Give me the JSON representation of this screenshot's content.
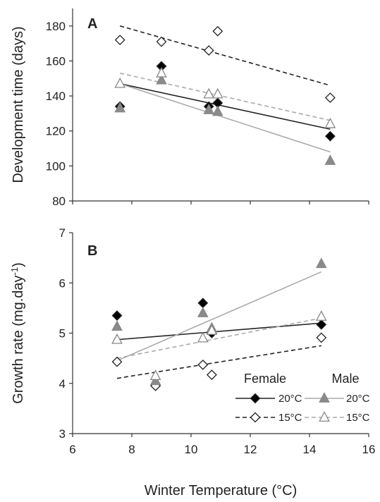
{
  "chart_data": [
    {
      "panel": "A",
      "type": "scatter",
      "ylabel": "Development time (days)",
      "xlim": [
        6,
        16
      ],
      "ylim": [
        80,
        190
      ],
      "yticks": [
        80,
        100,
        120,
        140,
        160,
        180
      ],
      "series": [
        {
          "sex": "Female",
          "temp": "20°C",
          "marker": "diamond",
          "fill": "#000000",
          "line": "solid",
          "line_color": "#222222",
          "points": [
            [
              7.6,
              134
            ],
            [
              9.0,
              157
            ],
            [
              10.6,
              134
            ],
            [
              10.9,
              136
            ],
            [
              14.7,
              117
            ]
          ],
          "fit": [
            [
              7.6,
              147
            ],
            [
              14.7,
              121
            ]
          ]
        },
        {
          "sex": "Female",
          "temp": "15°C",
          "marker": "diamond",
          "fill": "#ffffff",
          "line": "dashed",
          "line_color": "#222222",
          "points": [
            [
              7.6,
              172
            ],
            [
              9.0,
              171
            ],
            [
              10.6,
              166
            ],
            [
              10.9,
              177
            ],
            [
              14.7,
              139
            ]
          ],
          "fit": [
            [
              7.6,
              180
            ],
            [
              14.7,
              146
            ]
          ]
        },
        {
          "sex": "Male",
          "temp": "20°C",
          "marker": "triangle",
          "fill": "#8a8a8a",
          "line": "solid",
          "line_color": "#aaaaaa",
          "points": [
            [
              7.6,
              133
            ],
            [
              9.0,
              149
            ],
            [
              10.6,
              132
            ],
            [
              10.9,
              131
            ],
            [
              14.7,
              103
            ]
          ],
          "fit": [
            [
              7.6,
              147
            ],
            [
              14.7,
              108
            ]
          ]
        },
        {
          "sex": "Male",
          "temp": "15°C",
          "marker": "triangle",
          "fill": "#ffffff",
          "line": "dashed",
          "line_color": "#aaaaaa",
          "points": [
            [
              7.6,
              147
            ],
            [
              9.0,
              153
            ],
            [
              10.6,
              141
            ],
            [
              10.9,
              141
            ],
            [
              14.7,
              124
            ]
          ],
          "fit": [
            [
              7.6,
              153
            ],
            [
              14.7,
              126
            ]
          ]
        }
      ]
    },
    {
      "panel": "B",
      "type": "scatter",
      "ylabel_main": "Growth rate (mg.day",
      "ylabel_sup": "-1",
      "ylabel_end": ")",
      "xlabel": "Winter Temperature (°C)",
      "xlim": [
        6,
        16
      ],
      "ylim": [
        3,
        7
      ],
      "xticks": [
        6,
        8,
        10,
        12,
        14,
        16
      ],
      "yticks": [
        3,
        4,
        5,
        6,
        7
      ],
      "series": [
        {
          "sex": "Female",
          "temp": "20°C",
          "marker": "diamond",
          "fill": "#000000",
          "line": "solid",
          "line_color": "#222222",
          "points": [
            [
              7.5,
              5.35
            ],
            [
              8.8,
              3.97
            ],
            [
              10.4,
              5.6
            ],
            [
              10.7,
              5.0
            ],
            [
              14.4,
              5.17
            ]
          ],
          "fit": [
            [
              7.5,
              4.87
            ],
            [
              14.4,
              5.2
            ]
          ]
        },
        {
          "sex": "Female",
          "temp": "15°C",
          "marker": "diamond",
          "fill": "#ffffff",
          "line": "dashed",
          "line_color": "#222222",
          "points": [
            [
              7.5,
              4.43
            ],
            [
              8.8,
              3.95
            ],
            [
              10.4,
              4.37
            ],
            [
              10.7,
              4.17
            ],
            [
              14.4,
              4.91
            ]
          ],
          "fit": [
            [
              7.5,
              4.1
            ],
            [
              14.4,
              4.75
            ]
          ]
        },
        {
          "sex": "Male",
          "temp": "20°C",
          "marker": "triangle",
          "fill": "#8a8a8a",
          "line": "solid",
          "line_color": "#aaaaaa",
          "points": [
            [
              7.5,
              5.13
            ],
            [
              8.8,
              4.05
            ],
            [
              10.4,
              5.4
            ],
            [
              10.7,
              5.1
            ],
            [
              14.4,
              6.38
            ]
          ],
          "fit": [
            [
              7.5,
              4.45
            ],
            [
              14.4,
              6.22
            ]
          ]
        },
        {
          "sex": "Male",
          "temp": "15°C",
          "marker": "triangle",
          "fill": "#ffffff",
          "line": "dashed",
          "line_color": "#aaaaaa",
          "points": [
            [
              7.5,
              4.87
            ],
            [
              8.8,
              4.15
            ],
            [
              10.4,
              4.9
            ],
            [
              10.7,
              5.05
            ],
            [
              14.4,
              5.33
            ]
          ],
          "fit": [
            [
              7.5,
              4.5
            ],
            [
              14.4,
              5.3
            ]
          ]
        }
      ]
    }
  ],
  "legend": {
    "female_header": "Female",
    "male_header": "Male",
    "row_labels": [
      "20°C",
      "15°C"
    ]
  }
}
